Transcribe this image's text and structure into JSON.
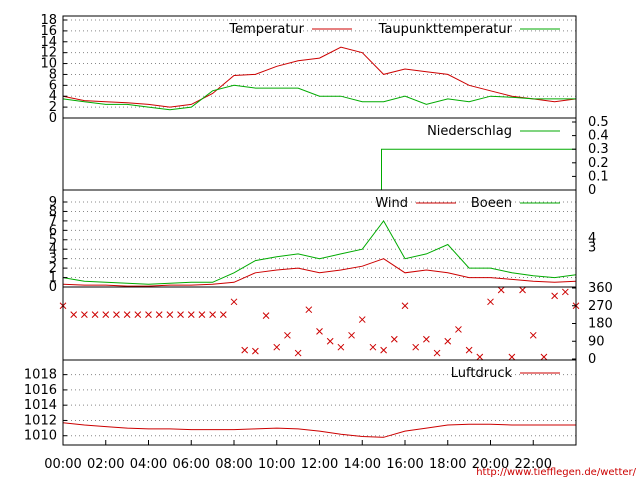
{
  "colors": {
    "temperature": "#cc0000",
    "dewpoint": "#00aa00",
    "grid": "#888888"
  },
  "footer": {
    "credit": "http://www.tiefflegen.de/wetter/"
  },
  "x_axis": {
    "ticks": [
      "00:00",
      "02:00",
      "04:00",
      "06:00",
      "08:00",
      "10:00",
      "12:00",
      "14:00",
      "16:00",
      "18:00",
      "20:00",
      "22:00"
    ]
  },
  "chart_data": [
    {
      "type": "line",
      "panel": "temperature",
      "ylim": [
        0,
        18
      ],
      "yticks": [
        0,
        2,
        4,
        6,
        8,
        10,
        12,
        14,
        16,
        18
      ],
      "grid": true,
      "legend_position": "top-right",
      "x": [
        0,
        1,
        2,
        3,
        4,
        5,
        6,
        7,
        8,
        9,
        10,
        11,
        12,
        13,
        14,
        15,
        16,
        17,
        18,
        19,
        20,
        21,
        22,
        23,
        24
      ],
      "series": [
        {
          "name": "Temperatur",
          "color": "#cc0000",
          "values": [
            4,
            3.2,
            3,
            2.8,
            2.5,
            2,
            2.5,
            4.5,
            7.8,
            8,
            9.5,
            10.5,
            11,
            13,
            12,
            8,
            9,
            8.5,
            8,
            6,
            5,
            4,
            3.5,
            3,
            3.5
          ]
        },
        {
          "name": "Taupunkttemperatur",
          "color": "#00aa00",
          "values": [
            3.5,
            3,
            2.5,
            2.5,
            2,
            1.5,
            2,
            5,
            6,
            5.5,
            5.5,
            5.5,
            4,
            4,
            3,
            3,
            4,
            2.5,
            3.5,
            3,
            4,
            3.8,
            3.5,
            3.5,
            3.5
          ]
        }
      ]
    },
    {
      "type": "line",
      "panel": "precipitation",
      "ylim": [
        0,
        0.5
      ],
      "yticks": [
        "0",
        "0.1",
        "0.2",
        "0.3",
        "0.4",
        "0.5"
      ],
      "legend_position": "top-right",
      "x": [
        0,
        14.9,
        14.9,
        24
      ],
      "series": [
        {
          "name": "Niederschlag",
          "color": "#00aa00",
          "values": [
            0,
            0,
            0.3,
            0.3
          ]
        }
      ]
    },
    {
      "type": "line",
      "panel": "wind",
      "ylim": [
        0,
        9
      ],
      "yticks": [
        0,
        1,
        2,
        3,
        4,
        5,
        6,
        7,
        8,
        9
      ],
      "right_ticks": [
        "3",
        "4"
      ],
      "grid": true,
      "legend_position": "top-right",
      "x": [
        0,
        1,
        2,
        3,
        4,
        5,
        6,
        7,
        8,
        9,
        10,
        11,
        12,
        13,
        14,
        15,
        16,
        17,
        18,
        19,
        20,
        21,
        22,
        23,
        24
      ],
      "series": [
        {
          "name": "Wind",
          "color": "#cc0000",
          "values": [
            0.3,
            0.2,
            0.2,
            0.1,
            0.1,
            0.2,
            0.2,
            0.3,
            0.5,
            1.5,
            1.8,
            2,
            1.5,
            1.8,
            2.2,
            3,
            1.5,
            1.8,
            1.5,
            1,
            1,
            0.8,
            0.6,
            0.5,
            0.6
          ]
        },
        {
          "name": "Boeen",
          "color": "#00aa00",
          "values": [
            1,
            0.6,
            0.5,
            0.4,
            0.3,
            0.4,
            0.5,
            0.5,
            1.5,
            2.8,
            3.2,
            3.5,
            3,
            3.5,
            4,
            7,
            3,
            3.5,
            4.5,
            2,
            2,
            1.5,
            1.2,
            1,
            1.3
          ]
        }
      ]
    },
    {
      "type": "scatter",
      "panel": "wind-direction",
      "ylim": [
        0,
        360
      ],
      "yticks": [
        "0",
        "90",
        "180",
        "270",
        "360"
      ],
      "x": [
        0,
        0.5,
        1,
        1.5,
        2,
        2.5,
        3,
        3.5,
        4,
        4.5,
        5,
        5.5,
        6,
        6.5,
        7,
        7.5,
        8,
        8.5,
        9,
        9.5,
        10,
        10.5,
        11,
        11.5,
        12,
        12.5,
        13,
        13.5,
        14,
        14.5,
        15,
        15.5,
        16,
        16.5,
        17,
        17.5,
        18,
        18.5,
        19,
        19.5,
        20,
        20.5,
        21,
        21.5,
        22,
        22.5,
        23,
        23.5,
        24
      ],
      "series": [
        {
          "name": "",
          "color": "#cc0000",
          "values": [
            270,
            225,
            225,
            225,
            225,
            225,
            225,
            225,
            225,
            225,
            225,
            225,
            225,
            225,
            225,
            225,
            290,
            45,
            40,
            220,
            60,
            120,
            30,
            250,
            140,
            90,
            60,
            120,
            200,
            60,
            45,
            100,
            270,
            60,
            100,
            30,
            90,
            150,
            45,
            10,
            290,
            350,
            10,
            350,
            120,
            10,
            320,
            340,
            270
          ]
        }
      ]
    },
    {
      "type": "line",
      "panel": "pressure",
      "ylim": [
        1008,
        1019
      ],
      "yticks": [
        1010,
        1012,
        1014,
        1016,
        1018
      ],
      "grid": true,
      "legend_position": "top-right",
      "x": [
        0,
        1,
        2,
        3,
        4,
        5,
        6,
        7,
        8,
        9,
        10,
        11,
        12,
        13,
        14,
        15,
        16,
        17,
        18,
        19,
        20,
        21,
        22,
        23,
        24
      ],
      "series": [
        {
          "name": "Luftdruck",
          "color": "#cc0000",
          "values": [
            1011.7,
            1011.4,
            1011.2,
            1011,
            1010.9,
            1010.9,
            1010.8,
            1010.8,
            1010.8,
            1010.9,
            1011,
            1010.9,
            1010.6,
            1010.2,
            1009.9,
            1009.8,
            1010.6,
            1011,
            1011.4,
            1011.5,
            1011.5,
            1011.4,
            1011.4,
            1011.4,
            1011.4
          ]
        }
      ]
    }
  ]
}
